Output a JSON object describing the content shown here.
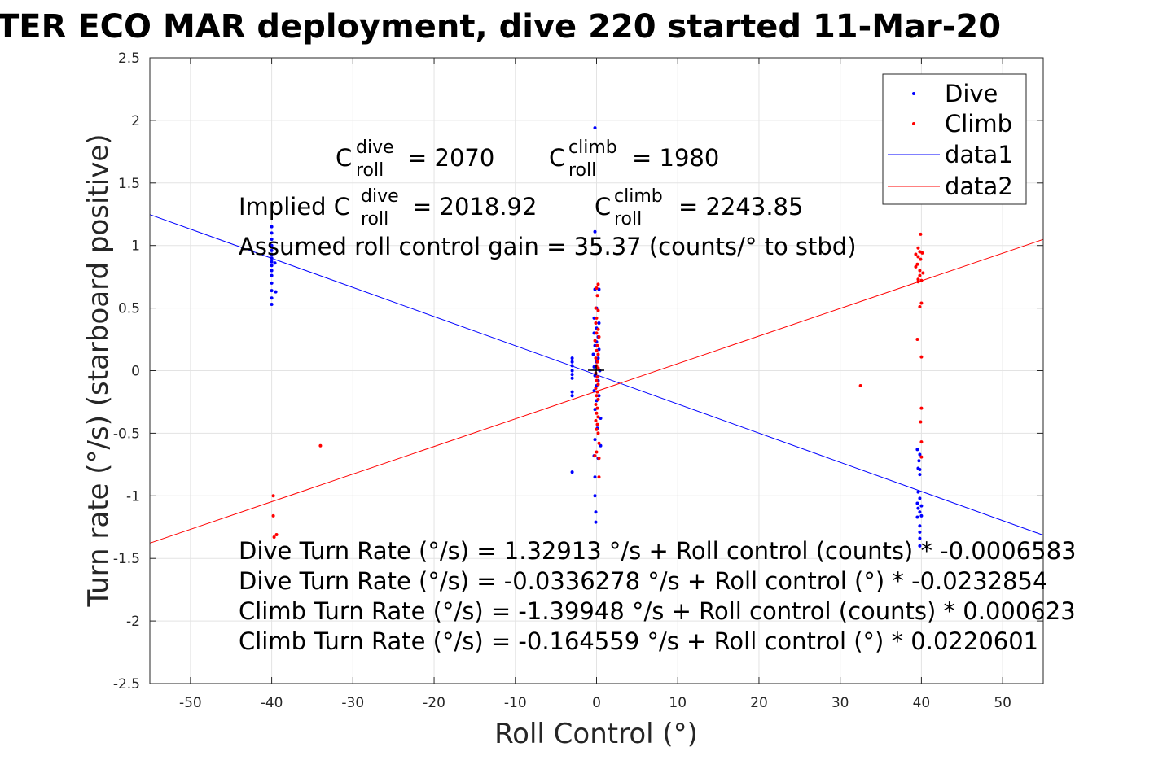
{
  "chart_data": {
    "type": "scatter",
    "title": "TER ECO MAR deployment, dive 220 started 11-Mar-20",
    "xlabel": "Roll Control (°)",
    "ylabel": "Turn rate (°/s) (starboard positive)",
    "xlim": [
      -55,
      55
    ],
    "ylim": [
      -2.5,
      2.5
    ],
    "xticks": [
      -50,
      -40,
      -30,
      -20,
      -10,
      0,
      10,
      20,
      30,
      40,
      50
    ],
    "yticks": [
      -2.5,
      -2,
      -1.5,
      -1,
      -0.5,
      0,
      0.5,
      1,
      1.5,
      2,
      2.5
    ],
    "xtick_labels": [
      "-50",
      "-40",
      "-30",
      "-20",
      "-10",
      "0",
      "10",
      "20",
      "30",
      "40",
      "50"
    ],
    "ytick_labels": [
      "-2.5",
      "-2",
      "-1.5",
      "-1",
      "-0.5",
      "0",
      "0.5",
      "1",
      "1.5",
      "2",
      "2.5"
    ],
    "grid": true,
    "legend_position": "top-right",
    "series": [
      {
        "name": "Dive",
        "style": "points",
        "color": "#0000ff",
        "points": [
          [
            -40,
            1.15
          ],
          [
            -40,
            1.1
          ],
          [
            -40,
            1.05
          ],
          [
            -40,
            1.0
          ],
          [
            -40,
            0.96
          ],
          [
            -40,
            0.93
          ],
          [
            -40,
            0.9
          ],
          [
            -40,
            0.87
          ],
          [
            -40,
            0.84
          ],
          [
            -40,
            0.8
          ],
          [
            -40,
            0.76
          ],
          [
            -40,
            0.7
          ],
          [
            -40,
            0.64
          ],
          [
            -40,
            0.58
          ],
          [
            -40,
            0.53
          ],
          [
            -39.5,
            0.63
          ],
          [
            -39.6,
            0.86
          ],
          [
            -3,
            0.1
          ],
          [
            -3,
            0.07
          ],
          [
            -3,
            0.04
          ],
          [
            -3,
            0.0
          ],
          [
            -3,
            -0.03
          ],
          [
            -3,
            -0.06
          ],
          [
            -3,
            -0.17
          ],
          [
            -3,
            -0.2
          ],
          [
            -3,
            -0.81
          ],
          [
            -0.2,
            1.94
          ],
          [
            -0.2,
            1.11
          ],
          [
            -0.2,
            0.65
          ],
          [
            0.3,
            0.65
          ],
          [
            0,
            0.5
          ],
          [
            -0.3,
            0.42
          ],
          [
            0.3,
            0.38
          ],
          [
            0,
            0.34
          ],
          [
            -0.3,
            0.3
          ],
          [
            0.2,
            0.27
          ],
          [
            0,
            0.23
          ],
          [
            -0.2,
            0.2
          ],
          [
            0.3,
            0.17
          ],
          [
            -0.4,
            0.13
          ],
          [
            0.2,
            0.1
          ],
          [
            0,
            0.07
          ],
          [
            -0.3,
            0.03
          ],
          [
            0.4,
            0.0
          ],
          [
            -0.2,
            -0.04
          ],
          [
            0.2,
            -0.08
          ],
          [
            0,
            -0.12
          ],
          [
            -0.3,
            -0.16
          ],
          [
            0.3,
            -0.2
          ],
          [
            0,
            -0.24
          ],
          [
            -0.2,
            -0.31
          ],
          [
            0.5,
            -0.38
          ],
          [
            0.1,
            -0.46
          ],
          [
            -0.2,
            -0.55
          ],
          [
            0.5,
            -0.6
          ],
          [
            -0.3,
            -0.68
          ],
          [
            0.2,
            -0.7
          ],
          [
            -0.2,
            -0.85
          ],
          [
            -0.2,
            -1.0
          ],
          [
            -0.1,
            -1.13
          ],
          [
            -0.1,
            -1.21
          ],
          [
            39.5,
            -0.63
          ],
          [
            39.8,
            -0.67
          ],
          [
            39.7,
            -0.72
          ],
          [
            39.6,
            -0.78
          ],
          [
            39.8,
            -0.79
          ],
          [
            39.8,
            -0.83
          ],
          [
            39.6,
            -0.97
          ],
          [
            39.8,
            -1.02
          ],
          [
            39.5,
            -1.06
          ],
          [
            40,
            -1.08
          ],
          [
            39.6,
            -1.1
          ],
          [
            39.8,
            -1.13
          ],
          [
            40,
            -1.16
          ],
          [
            39.5,
            -1.17
          ],
          [
            39.8,
            -1.24
          ],
          [
            39.8,
            -1.29
          ],
          [
            39.8,
            -1.34
          ],
          [
            39.8,
            -1.4
          ]
        ]
      },
      {
        "name": "Climb",
        "style": "points",
        "color": "#ff0000",
        "points": [
          [
            -39.8,
            -1.0
          ],
          [
            -39.8,
            -1.16
          ],
          [
            -39.7,
            -1.33
          ],
          [
            -39.4,
            -1.31
          ],
          [
            -34,
            -0.6
          ],
          [
            0.2,
            0.69
          ],
          [
            0,
            0.66
          ],
          [
            0.1,
            0.6
          ],
          [
            -0.1,
            0.5
          ],
          [
            0.2,
            0.48
          ],
          [
            0,
            0.42
          ],
          [
            -0.1,
            0.38
          ],
          [
            0.2,
            0.33
          ],
          [
            0,
            0.3
          ],
          [
            0.3,
            0.27
          ],
          [
            -0.2,
            0.24
          ],
          [
            0.1,
            0.2
          ],
          [
            0,
            0.16
          ],
          [
            0.2,
            0.13
          ],
          [
            -0.1,
            0.1
          ],
          [
            0.1,
            0.07
          ],
          [
            0,
            0.04
          ],
          [
            0.2,
            0.02
          ],
          [
            -0.1,
            -0.02
          ],
          [
            0.1,
            -0.05
          ],
          [
            0,
            -0.08
          ],
          [
            0.2,
            -0.11
          ],
          [
            -0.1,
            -0.14
          ],
          [
            0.1,
            -0.17
          ],
          [
            0,
            -0.2
          ],
          [
            0.2,
            -0.23
          ],
          [
            -0.1,
            -0.27
          ],
          [
            0.1,
            -0.3
          ],
          [
            0,
            -0.34
          ],
          [
            0.2,
            -0.37
          ],
          [
            -0.1,
            -0.4
          ],
          [
            0.1,
            -0.43
          ],
          [
            0,
            -0.47
          ],
          [
            0.2,
            -0.5
          ],
          [
            0.3,
            -0.58
          ],
          [
            0,
            -0.65
          ],
          [
            -0.2,
            -0.68
          ],
          [
            0.3,
            -0.7
          ],
          [
            0.3,
            -0.85
          ],
          [
            32.5,
            -0.12
          ],
          [
            39.9,
            1.09
          ],
          [
            39.6,
            0.98
          ],
          [
            39.8,
            0.95
          ],
          [
            40.1,
            0.94
          ],
          [
            39.3,
            0.93
          ],
          [
            39.6,
            0.91
          ],
          [
            39.9,
            0.89
          ],
          [
            39.5,
            0.85
          ],
          [
            39.3,
            0.83
          ],
          [
            39.8,
            0.8
          ],
          [
            40.2,
            0.78
          ],
          [
            39.8,
            0.76
          ],
          [
            39.6,
            0.73
          ],
          [
            40.0,
            0.72
          ],
          [
            39.6,
            0.71
          ],
          [
            40.0,
            0.54
          ],
          [
            39.8,
            0.51
          ],
          [
            39.5,
            0.25
          ],
          [
            40,
            0.11
          ],
          [
            40,
            -0.3
          ],
          [
            39.9,
            -0.41
          ],
          [
            40,
            -0.57
          ],
          [
            40,
            -0.69
          ]
        ]
      },
      {
        "name": "data1",
        "style": "line",
        "color": "#0000ff",
        "points": [
          [
            -55,
            1.2472
          ],
          [
            55,
            -1.3143
          ]
        ]
      },
      {
        "name": "data2",
        "style": "line",
        "color": "#ff0000",
        "points": [
          [
            -55,
            -1.3779
          ],
          [
            55,
            1.0487
          ]
        ]
      }
    ],
    "annotations": {
      "c_dive_prefix": "C",
      "c_dive_sup": "dive",
      "c_dive_sub": "roll",
      "c_dive_value": "= 2070",
      "c_climb_prefix": "C",
      "c_climb_sup": "climb",
      "c_climb_sub": "roll",
      "c_climb_value": "= 1980",
      "implied_prefix": "Implied C",
      "implied_dive_sup": "dive",
      "implied_dive_sub": "roll",
      "implied_dive_value": "= 2018.92",
      "implied_climb_prefix": "C",
      "implied_climb_sup": "climb",
      "implied_climb_sub": "roll",
      "implied_climb_value": "= 2243.85",
      "gain": "Assumed roll control gain = 35.37 (counts/° to stbd)",
      "eq1": "Dive Turn Rate (°/s) = 1.32913 °/s + Roll control (counts) * -0.0006583",
      "eq2": "Dive Turn Rate (°/s) = -0.0336278 °/s + Roll control (°) * -0.0232854",
      "eq3": "Climb Turn Rate (°/s) = -1.39948 °/s + Roll control (counts) * 0.000623",
      "eq4": "Climb Turn Rate (°/s) = -0.164559 °/s + Roll control (°) * 0.0220601"
    }
  }
}
